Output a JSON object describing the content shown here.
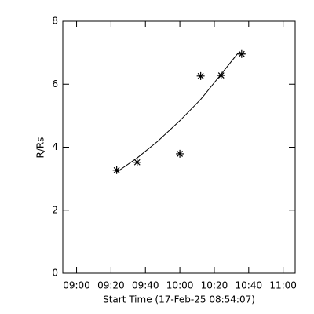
{
  "chart_data": {
    "type": "scatter",
    "xlabel": "Start Time (17-Feb-25 08:54:07)",
    "ylabel": "R/Rs",
    "x": [
      563.3,
      575.2,
      600,
      612.1,
      624,
      635.9
    ],
    "values": [
      3.27,
      3.52,
      3.79,
      6.26,
      6.28,
      6.96
    ],
    "fit_x": [
      563,
      575,
      587,
      600,
      612,
      624,
      634
    ],
    "fit_values": [
      3.2,
      3.65,
      4.18,
      4.84,
      5.51,
      6.32,
      7.0
    ],
    "color": "#000000",
    "xlim": [
      532,
      667
    ],
    "ylim": [
      0,
      8
    ],
    "xticks": [
      {
        "value": 540,
        "label": "09:00"
      },
      {
        "value": 560,
        "label": "09:20"
      },
      {
        "value": 580,
        "label": "09:40"
      },
      {
        "value": 600,
        "label": "10:00"
      },
      {
        "value": 620,
        "label": "10:20"
      },
      {
        "value": 640,
        "label": "10:40"
      },
      {
        "value": 660,
        "label": "11:00"
      }
    ],
    "yticks": [
      0,
      2,
      4,
      6,
      8
    ]
  }
}
